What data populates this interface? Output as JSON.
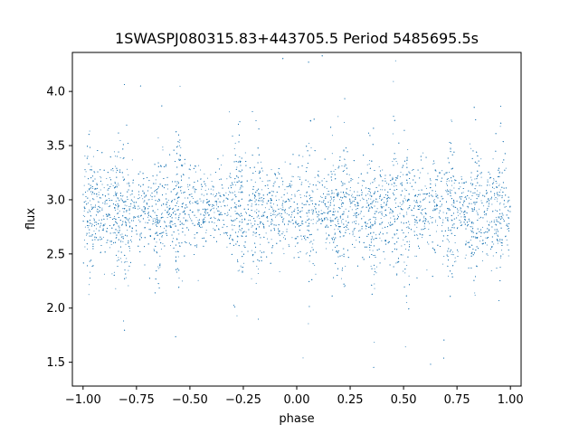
{
  "chart_data": {
    "type": "scatter",
    "title": "1SWASPJ080315.83+443705.5 Period 5485695.5s",
    "xlabel": "phase",
    "ylabel": "flux",
    "xlim": [
      -1.05,
      1.05
    ],
    "ylim": [
      1.28,
      4.36
    ],
    "xticks": [
      -1.0,
      -0.75,
      -0.5,
      -0.25,
      0.0,
      0.25,
      0.5,
      0.75,
      1.0
    ],
    "xtick_labels": [
      "−1.00",
      "−0.75",
      "−0.50",
      "−0.25",
      "0.00",
      "0.25",
      "0.50",
      "0.75",
      "1.00"
    ],
    "yticks": [
      1.5,
      2.0,
      2.5,
      3.0,
      3.5,
      4.0
    ],
    "ytick_labels": [
      "1.5",
      "2.0",
      "2.5",
      "3.0",
      "3.5",
      "4.0"
    ],
    "grid": false,
    "legend": "none",
    "marker_color": "#1f77b4",
    "series": [
      {
        "phase_range": [
          -1.0,
          1.0
        ],
        "flux_median": 2.9,
        "flux_core_range": [
          2.4,
          3.4
        ],
        "flux_extreme_range": [
          1.4,
          4.35
        ],
        "high_scatter_phases": [
          -0.97,
          -0.84,
          -0.8,
          -0.65,
          -0.55,
          -0.27,
          -0.18,
          0.06,
          0.18,
          0.22,
          0.35,
          0.46,
          0.51,
          0.72,
          0.83,
          0.95
        ]
      }
    ]
  }
}
